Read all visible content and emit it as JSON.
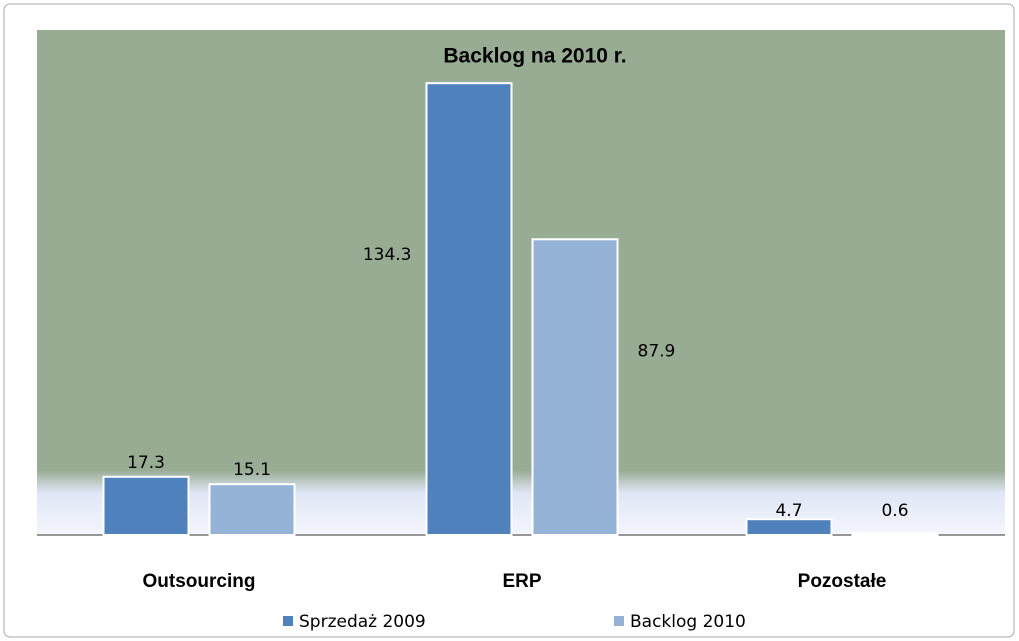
{
  "chart_data": {
    "type": "bar",
    "title": "Backlog na 2010 r.",
    "categories": [
      "Outsourcing",
      "ERP",
      "Pozostałe"
    ],
    "series": [
      {
        "name": "Sprzedaż 2009",
        "color": "#4f81bd",
        "values": [
          17.3,
          134.3,
          4.7
        ]
      },
      {
        "name": "Backlog 2010",
        "color": "#95b3d7",
        "values": [
          15.1,
          87.9,
          0.6
        ]
      }
    ],
    "ylim": [
      0,
      140
    ]
  }
}
